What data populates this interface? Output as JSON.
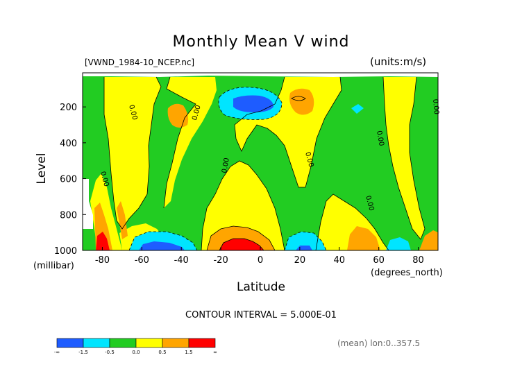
{
  "chart_data": {
    "type": "heatmap",
    "title": "Monthly Mean V wind",
    "dataset_label": "[VWND_1984-10_NCEP.nc]",
    "units_label": "(units:m/s)",
    "xlabel": "Latitude",
    "x_unit": "(degrees_north)",
    "ylabel": "Level",
    "y_unit": "(millibar)",
    "x_ticks": [
      "-80",
      "-60",
      "-40",
      "-20",
      "0",
      "20",
      "40",
      "60",
      "80"
    ],
    "x_tick_values": [
      -80,
      -60,
      -40,
      -20,
      0,
      20,
      40,
      60,
      80
    ],
    "y_ticks": [
      "200",
      "400",
      "600",
      "800",
      "1000"
    ],
    "y_tick_values": [
      200,
      400,
      600,
      800,
      1000
    ],
    "xlim": [
      -90,
      90
    ],
    "ylim": [
      1000,
      10
    ],
    "contour_interval_text": "CONTOUR INTERVAL = 5.000E-01",
    "contour_label": "0.00",
    "footer": "(mean) lon:0..357.5",
    "colorbar": {
      "colors": [
        "#1e5cff",
        "#00e5ff",
        "#22cc22",
        "#ffff00",
        "#ffa500",
        "#ff0000"
      ],
      "labels": [
        "-∞",
        "-1.5",
        "-0.5",
        "0.0",
        "0.5",
        "1.5",
        "∞"
      ]
    }
  }
}
